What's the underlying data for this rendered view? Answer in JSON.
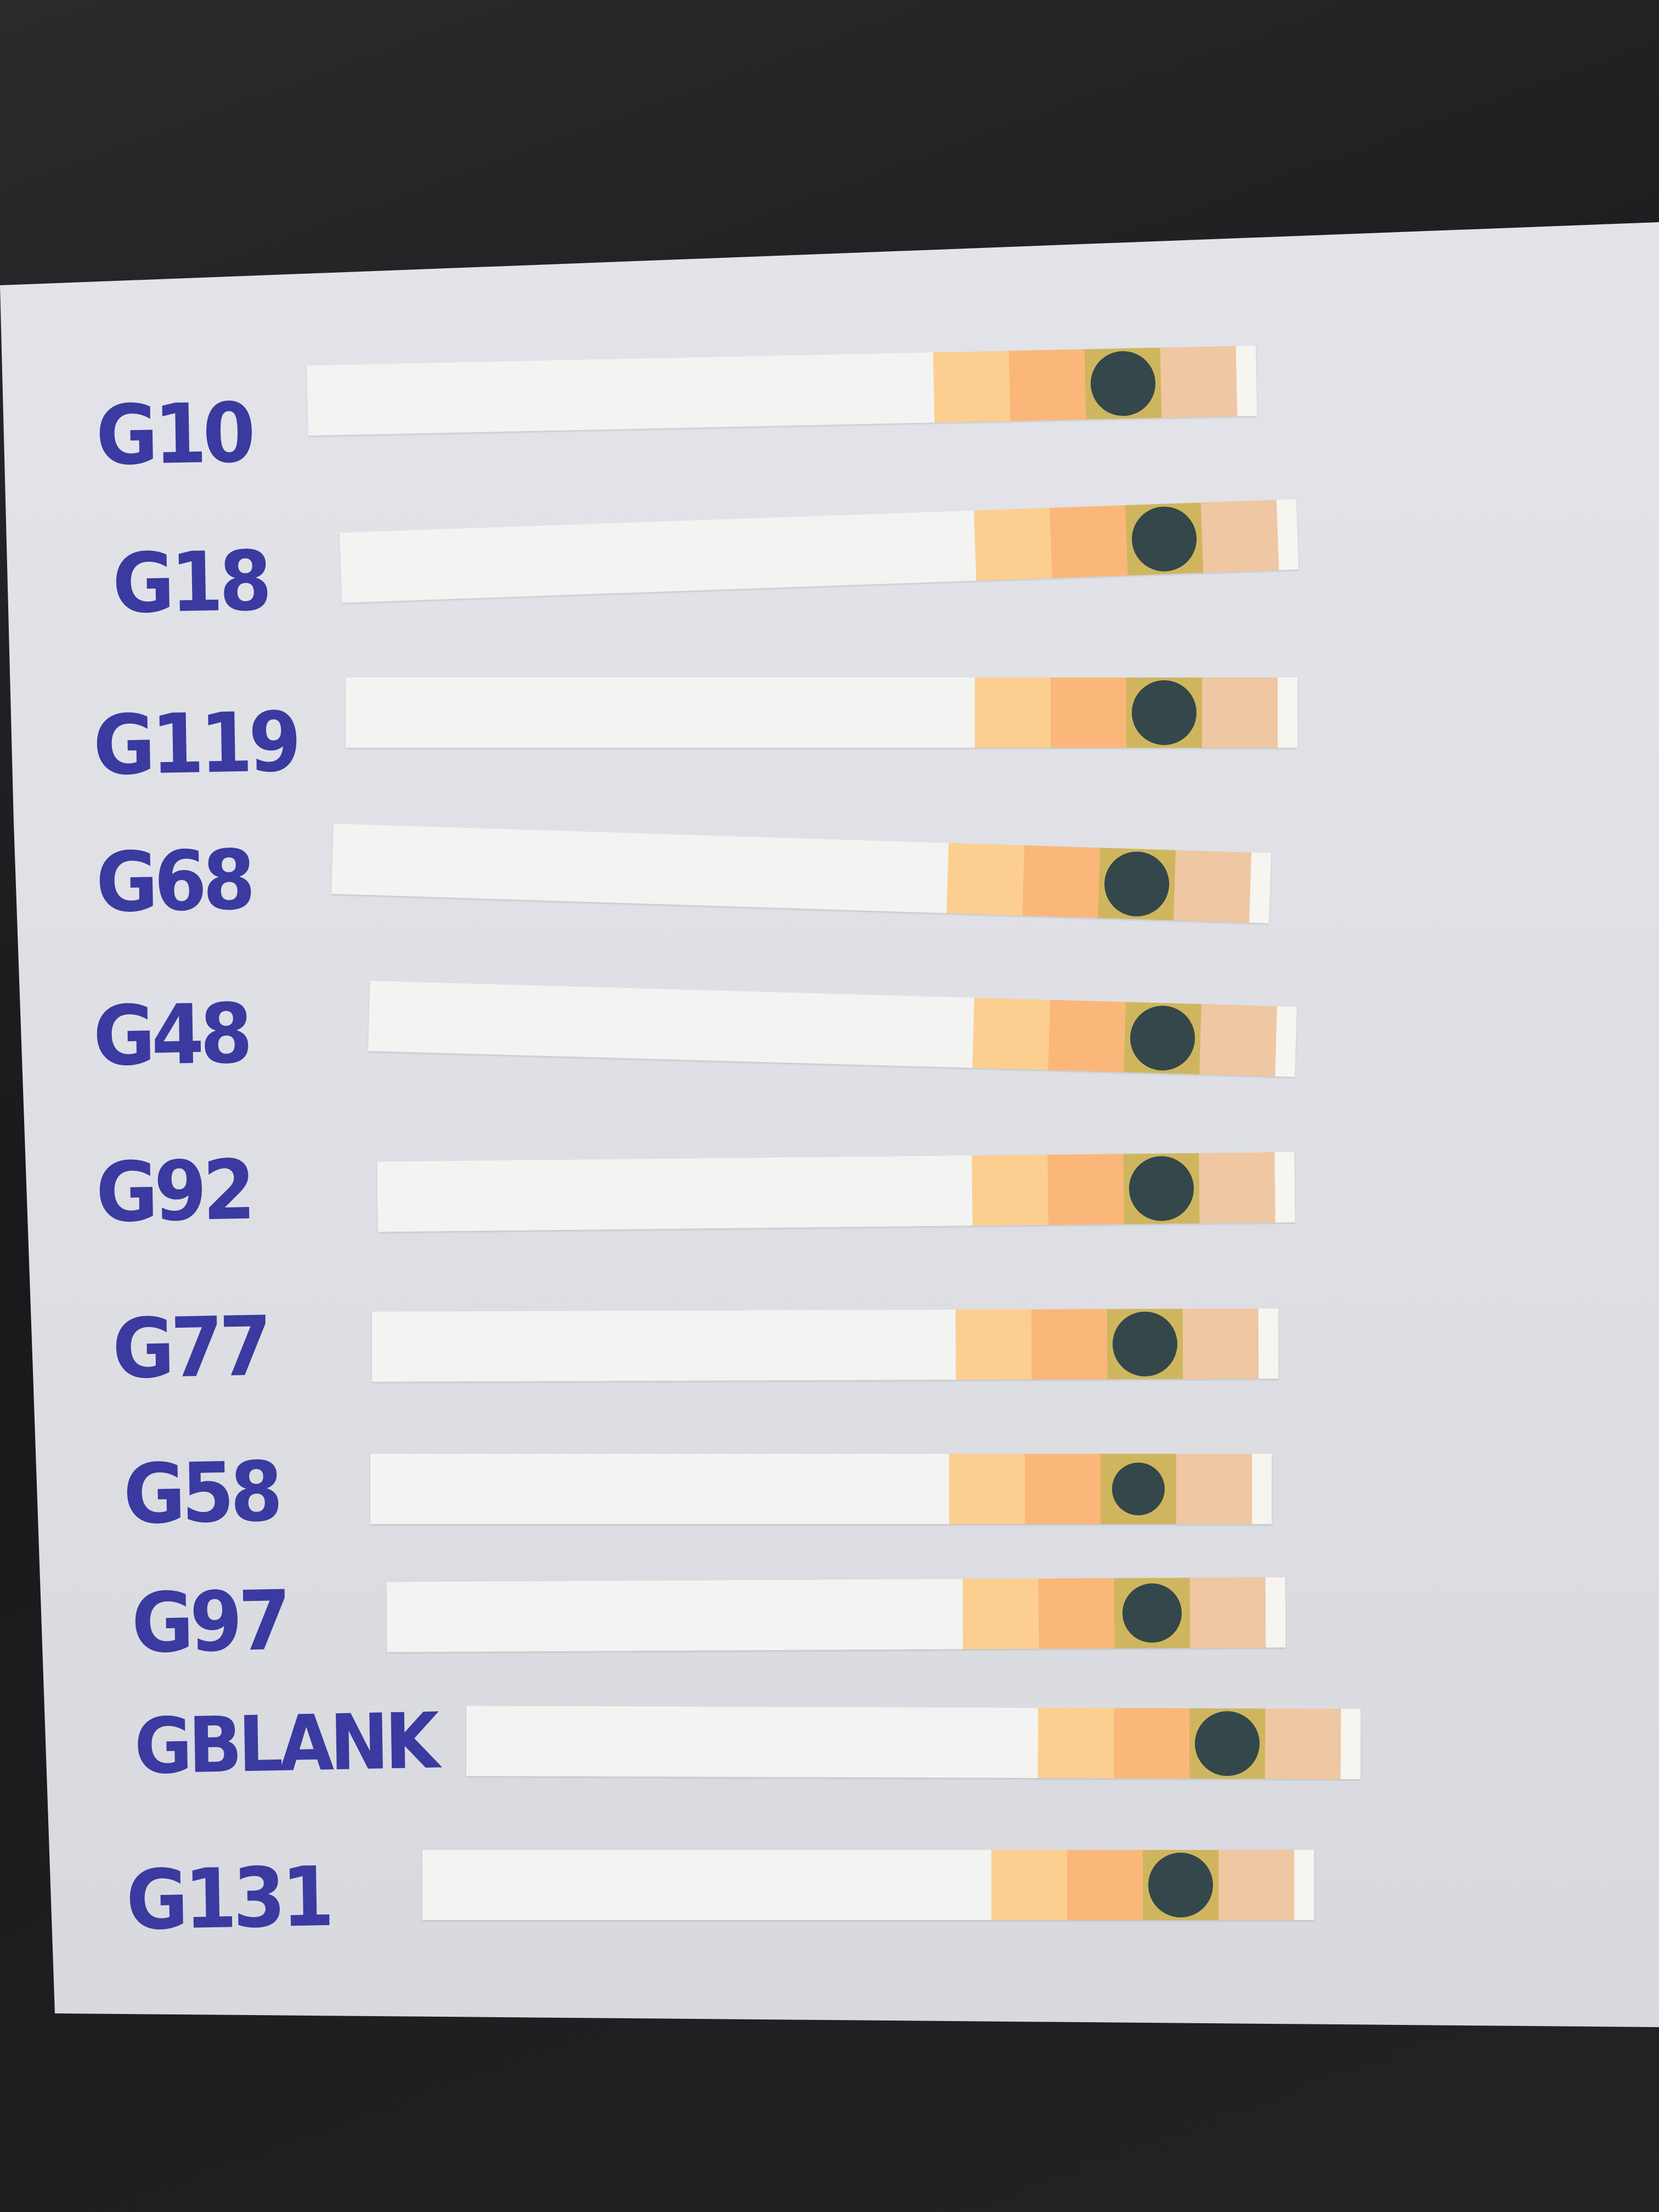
{
  "strips": [
    {
      "label": "G10"
    },
    {
      "label": "G18"
    },
    {
      "label": "G119"
    },
    {
      "label": "G68"
    },
    {
      "label": "G48"
    },
    {
      "label": "G92"
    },
    {
      "label": "G77"
    },
    {
      "label": "G58"
    },
    {
      "label": "G97"
    },
    {
      "label": "GBLANK"
    },
    {
      "label": "G131"
    }
  ],
  "colors": {
    "ink": "#3a3aa0",
    "pad_light_orange": "#fccf91",
    "pad_orange": "#fbb77a",
    "pad_tan": "#efc7a2",
    "test_spot": "#34474a",
    "background": "#1d1d1f",
    "paper": "#e2e3e8"
  }
}
